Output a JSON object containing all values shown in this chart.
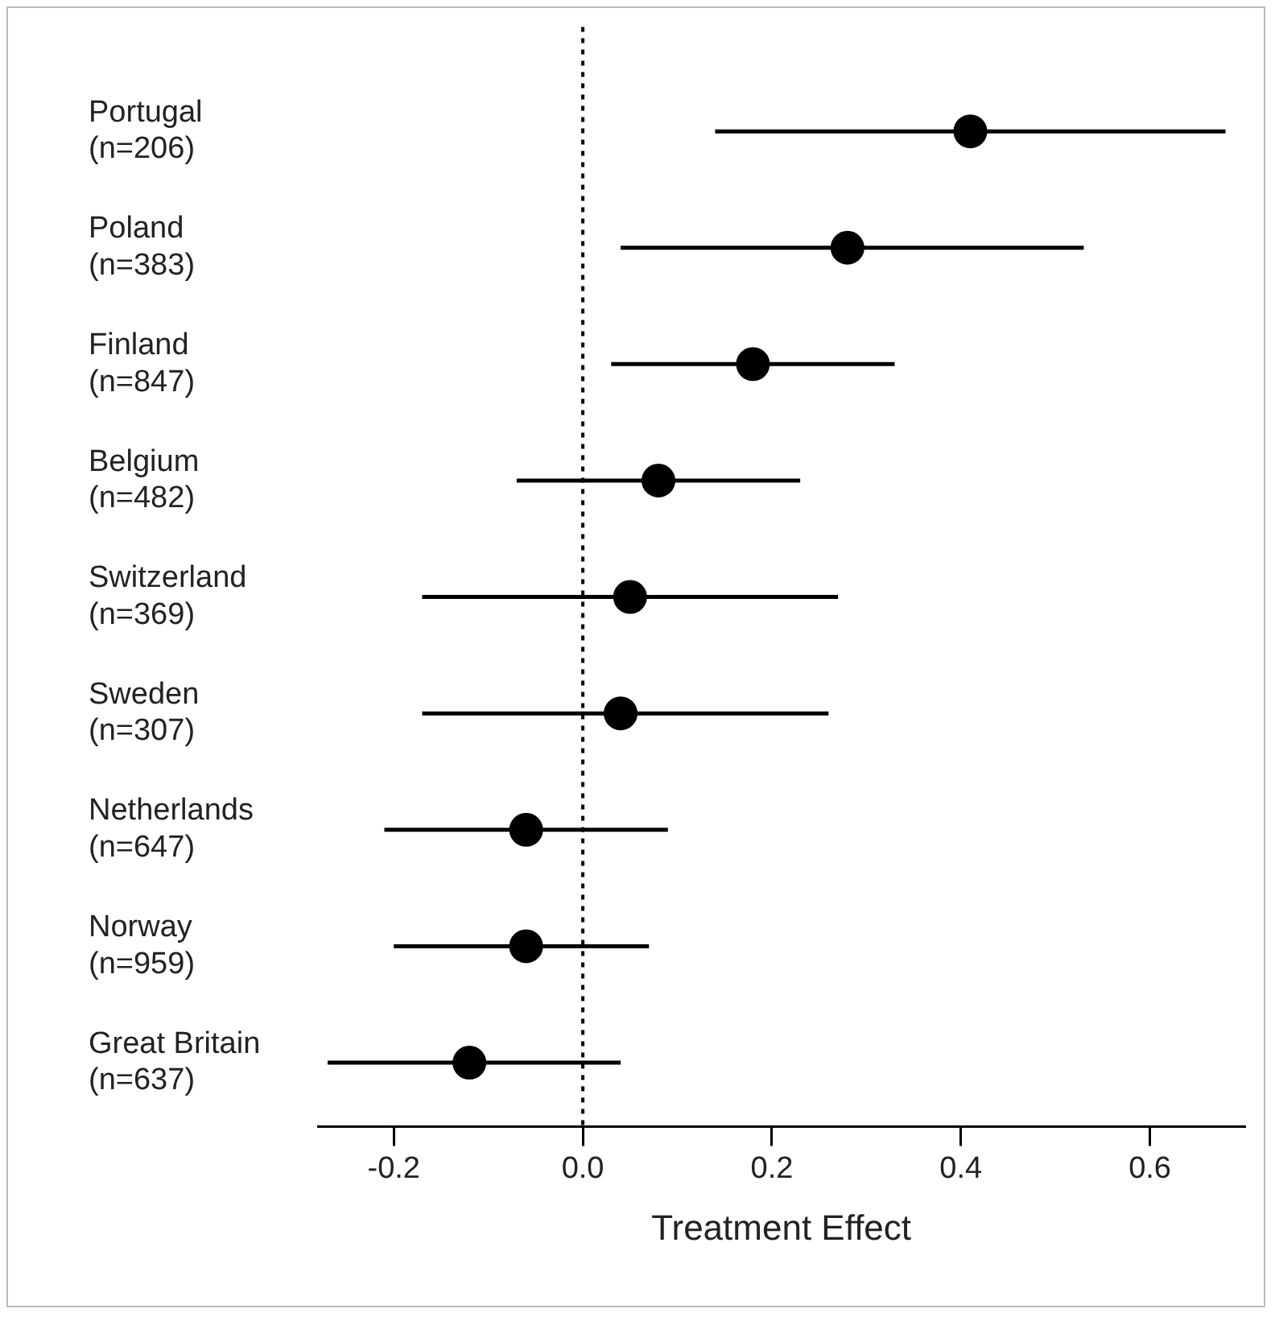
{
  "chart_data": {
    "type": "scatter",
    "orientation": "horizontal",
    "xlabel": "Treatment Effect",
    "categories": [
      "Portugal\n(n=206)",
      "Poland\n(n=383)",
      "Finland\n(n=847)",
      "Belgium\n(n=482)",
      "Switzerland\n(n=369)",
      "Sweden\n(n=307)",
      "Netherlands\n(n=647)",
      "Norway\n(n=959)",
      "Great Britain\n(n=637)"
    ],
    "values": [
      0.41,
      0.28,
      0.18,
      0.08,
      0.05,
      0.04,
      -0.06,
      -0.06,
      -0.12
    ],
    "errors": [
      [
        0.14,
        0.68
      ],
      [
        0.04,
        0.53
      ],
      [
        0.03,
        0.33
      ],
      [
        -0.07,
        0.23
      ],
      [
        -0.17,
        0.27
      ],
      [
        -0.17,
        0.26
      ],
      [
        -0.21,
        0.09
      ],
      [
        -0.2,
        0.07
      ],
      [
        -0.27,
        0.04
      ]
    ],
    "color": "#000000",
    "marker": "circle",
    "xlim": [
      -0.28,
      0.7
    ],
    "xticks": [
      {
        "value": -0.2,
        "label": "-0.2"
      },
      {
        "value": 0,
        "label": "0.0"
      },
      {
        "value": 0.2,
        "label": "0.2"
      },
      {
        "value": 0.4,
        "label": "0.4"
      },
      {
        "value": 0.6,
        "label": "0.6"
      }
    ],
    "ref_lines": [
      {
        "axis": "x",
        "value": 0,
        "line_style": "dotted",
        "color": "#000000"
      }
    ],
    "grid": false,
    "legend": false
  }
}
